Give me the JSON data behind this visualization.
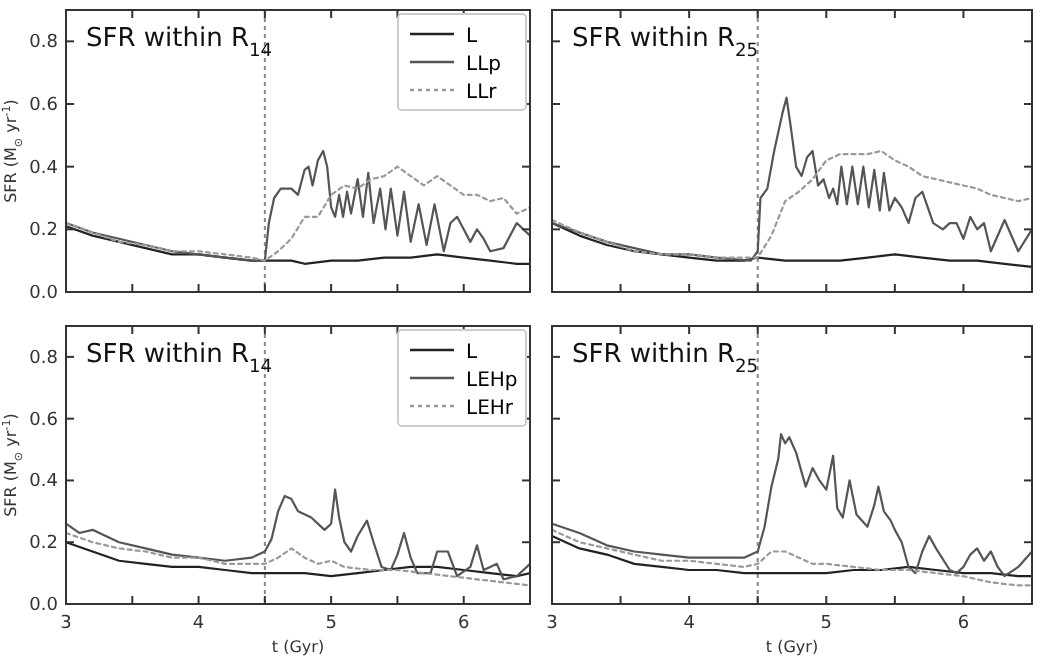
{
  "chart_data": [
    {
      "type": "line",
      "title": "SFR within R$_{14}$",
      "ylabel": "SFR (M$_{⊙}$ yr$^{-1}$)",
      "xlim": [
        3,
        6.5
      ],
      "ylim": [
        0,
        0.9
      ],
      "xticks": [
        {
          "value": 3,
          "label": null
        },
        {
          "value": 3.5,
          "label": null
        },
        {
          "value": 4,
          "label": null
        },
        {
          "value": 4.5,
          "label": null
        },
        {
          "value": 5,
          "label": null
        },
        {
          "value": 5.5,
          "label": null
        },
        {
          "value": 6,
          "label": null
        }
      ],
      "yticks": [
        {
          "value": 0,
          "label": "0.0"
        },
        {
          "value": 0.2,
          "label": "0.2"
        },
        {
          "value": 0.4,
          "label": "0.4"
        },
        {
          "value": 0.6,
          "label": "0.6"
        },
        {
          "value": 0.8,
          "label": "0.8"
        }
      ],
      "tick_labels": "y",
      "legend": "top right",
      "grid": false,
      "ref_lines": [
        {
          "axis": "x",
          "value": 4.5,
          "color": "#888888",
          "line_style": "dotted"
        }
      ],
      "series": [
        {
          "name": "L",
          "color": "#222222",
          "line_style": "solid",
          "x": [
            3.0,
            3.2,
            3.4,
            3.6,
            3.8,
            4.0,
            4.2,
            4.4,
            4.5,
            4.7,
            4.8,
            5.0,
            5.2,
            5.4,
            5.6,
            5.8,
            6.0,
            6.2,
            6.4,
            6.5
          ],
          "values": [
            0.21,
            0.18,
            0.16,
            0.14,
            0.12,
            0.12,
            0.11,
            0.1,
            0.1,
            0.1,
            0.09,
            0.1,
            0.1,
            0.11,
            0.11,
            0.12,
            0.11,
            0.1,
            0.09,
            0.09
          ]
        },
        {
          "name": "LLp",
          "color": "#555555",
          "line_style": "solid",
          "x": [
            3.0,
            3.2,
            3.4,
            3.6,
            3.8,
            4.0,
            4.2,
            4.4,
            4.5,
            4.53,
            4.57,
            4.62,
            4.7,
            4.75,
            4.8,
            4.83,
            4.86,
            4.9,
            4.94,
            4.97,
            5.0,
            5.03,
            5.06,
            5.09,
            5.12,
            5.15,
            5.2,
            5.24,
            5.28,
            5.32,
            5.37,
            5.41,
            5.45,
            5.5,
            5.55,
            5.6,
            5.66,
            5.72,
            5.78,
            5.85,
            5.9,
            5.95,
            6.0,
            6.05,
            6.1,
            6.15,
            6.2,
            6.3,
            6.4,
            6.5
          ],
          "values": [
            0.22,
            0.19,
            0.17,
            0.15,
            0.13,
            0.12,
            0.11,
            0.1,
            0.1,
            0.22,
            0.3,
            0.33,
            0.33,
            0.31,
            0.39,
            0.4,
            0.34,
            0.42,
            0.45,
            0.4,
            0.27,
            0.24,
            0.31,
            0.24,
            0.32,
            0.25,
            0.36,
            0.24,
            0.38,
            0.22,
            0.33,
            0.2,
            0.33,
            0.18,
            0.32,
            0.16,
            0.28,
            0.15,
            0.28,
            0.13,
            0.22,
            0.24,
            0.2,
            0.16,
            0.2,
            0.17,
            0.13,
            0.14,
            0.22,
            0.18
          ]
        },
        {
          "name": "LLr",
          "color": "#999999",
          "line_style": "dotted",
          "x": [
            3.0,
            3.2,
            3.4,
            3.6,
            3.8,
            4.0,
            4.2,
            4.4,
            4.5,
            4.6,
            4.7,
            4.8,
            4.9,
            5.0,
            5.1,
            5.2,
            5.3,
            5.4,
            5.5,
            5.6,
            5.7,
            5.8,
            5.9,
            6.0,
            6.1,
            6.2,
            6.3,
            6.4,
            6.5
          ],
          "values": [
            0.22,
            0.19,
            0.16,
            0.15,
            0.13,
            0.13,
            0.12,
            0.11,
            0.1,
            0.13,
            0.17,
            0.24,
            0.24,
            0.31,
            0.34,
            0.33,
            0.36,
            0.37,
            0.4,
            0.37,
            0.34,
            0.37,
            0.34,
            0.31,
            0.31,
            0.29,
            0.3,
            0.25,
            0.27
          ]
        }
      ]
    },
    {
      "type": "line",
      "title": "SFR within R$_{25}$",
      "xlim": [
        3,
        6.5
      ],
      "ylim": [
        0,
        0.9
      ],
      "xticks": [
        {
          "value": 3,
          "label": null
        },
        {
          "value": 3.5,
          "label": null
        },
        {
          "value": 4,
          "label": null
        },
        {
          "value": 4.5,
          "label": null
        },
        {
          "value": 5,
          "label": null
        },
        {
          "value": 5.5,
          "label": null
        },
        {
          "value": 6,
          "label": null
        }
      ],
      "yticks": [
        {
          "value": 0,
          "label": null
        },
        {
          "value": 0.2,
          "label": null
        },
        {
          "value": 0.4,
          "label": null
        },
        {
          "value": 0.6,
          "label": null
        },
        {
          "value": 0.8,
          "label": null
        }
      ],
      "tick_labels": false,
      "grid": false,
      "ref_lines": [
        {
          "axis": "x",
          "value": 4.5,
          "color": "#888888",
          "line_style": "dotted"
        }
      ],
      "series": [
        {
          "color": "#222222",
          "line_style": "solid",
          "x": [
            3.0,
            3.2,
            3.4,
            3.6,
            3.8,
            4.0,
            4.2,
            4.4,
            4.5,
            4.7,
            4.9,
            5.1,
            5.3,
            5.5,
            5.7,
            5.9,
            6.1,
            6.3,
            6.5
          ],
          "values": [
            0.22,
            0.18,
            0.15,
            0.13,
            0.12,
            0.11,
            0.1,
            0.1,
            0.11,
            0.1,
            0.1,
            0.1,
            0.11,
            0.12,
            0.11,
            0.1,
            0.1,
            0.09,
            0.08
          ]
        },
        {
          "color": "#555555",
          "line_style": "solid",
          "x": [
            3.0,
            3.2,
            3.4,
            3.6,
            3.8,
            4.0,
            4.2,
            4.45,
            4.5,
            4.52,
            4.57,
            4.62,
            4.68,
            4.71,
            4.74,
            4.78,
            4.82,
            4.86,
            4.9,
            4.94,
            4.98,
            5.02,
            5.05,
            5.08,
            5.11,
            5.15,
            5.19,
            5.23,
            5.27,
            5.31,
            5.35,
            5.39,
            5.42,
            5.46,
            5.5,
            5.55,
            5.6,
            5.65,
            5.7,
            5.78,
            5.85,
            5.9,
            5.95,
            6.0,
            6.05,
            6.1,
            6.15,
            6.2,
            6.3,
            6.4,
            6.5
          ],
          "values": [
            0.22,
            0.19,
            0.16,
            0.14,
            0.12,
            0.12,
            0.11,
            0.1,
            0.13,
            0.3,
            0.33,
            0.45,
            0.57,
            0.62,
            0.53,
            0.4,
            0.37,
            0.43,
            0.45,
            0.34,
            0.36,
            0.3,
            0.33,
            0.28,
            0.4,
            0.28,
            0.4,
            0.28,
            0.4,
            0.27,
            0.39,
            0.26,
            0.38,
            0.26,
            0.3,
            0.27,
            0.22,
            0.3,
            0.32,
            0.22,
            0.2,
            0.22,
            0.22,
            0.17,
            0.24,
            0.2,
            0.22,
            0.13,
            0.23,
            0.13,
            0.2
          ]
        },
        {
          "color": "#999999",
          "line_style": "dotted",
          "x": [
            3.0,
            3.2,
            3.4,
            3.6,
            3.8,
            4.0,
            4.2,
            4.4,
            4.5,
            4.6,
            4.7,
            4.8,
            4.9,
            5.0,
            5.1,
            5.2,
            5.3,
            5.4,
            5.5,
            5.6,
            5.7,
            5.8,
            5.9,
            6.0,
            6.1,
            6.2,
            6.3,
            6.4,
            6.5
          ],
          "values": [
            0.23,
            0.19,
            0.16,
            0.13,
            0.12,
            0.12,
            0.11,
            0.11,
            0.11,
            0.18,
            0.29,
            0.32,
            0.36,
            0.42,
            0.44,
            0.44,
            0.44,
            0.45,
            0.42,
            0.4,
            0.37,
            0.36,
            0.35,
            0.34,
            0.33,
            0.31,
            0.3,
            0.29,
            0.3
          ]
        }
      ]
    },
    {
      "type": "line",
      "title": "SFR within R$_{14}$",
      "ylabel": "SFR (M$_{⊙}$ yr$^{-1}$)",
      "xlabel": "t (Gyr)",
      "xlim": [
        3,
        6.5
      ],
      "ylim": [
        0,
        0.9
      ],
      "xticks": [
        {
          "value": 3,
          "label": "3"
        },
        {
          "value": 3.5,
          "label": null
        },
        {
          "value": 4,
          "label": "4"
        },
        {
          "value": 4.5,
          "label": null
        },
        {
          "value": 5,
          "label": "5"
        },
        {
          "value": 5.5,
          "label": null
        },
        {
          "value": 6,
          "label": "6"
        }
      ],
      "yticks": [
        {
          "value": 0,
          "label": "0.0"
        },
        {
          "value": 0.2,
          "label": "0.2"
        },
        {
          "value": 0.4,
          "label": "0.4"
        },
        {
          "value": 0.6,
          "label": "0.6"
        },
        {
          "value": 0.8,
          "label": "0.8"
        }
      ],
      "legend": "top right",
      "grid": false,
      "ref_lines": [
        {
          "axis": "x",
          "value": 4.5,
          "color": "#888888",
          "line_style": "dotted"
        }
      ],
      "series": [
        {
          "name": "L",
          "color": "#222222",
          "line_style": "solid",
          "x": [
            3.0,
            3.2,
            3.4,
            3.6,
            3.8,
            4.0,
            4.2,
            4.4,
            4.6,
            4.8,
            5.0,
            5.2,
            5.4,
            5.6,
            5.8,
            6.0,
            6.2,
            6.4,
            6.5
          ],
          "values": [
            0.2,
            0.17,
            0.14,
            0.13,
            0.12,
            0.12,
            0.11,
            0.1,
            0.1,
            0.1,
            0.09,
            0.1,
            0.11,
            0.12,
            0.12,
            0.11,
            0.1,
            0.09,
            0.1
          ]
        },
        {
          "name": "LEHp",
          "color": "#555555",
          "line_style": "solid",
          "x": [
            3.0,
            3.1,
            3.2,
            3.3,
            3.4,
            3.6,
            3.8,
            4.0,
            4.2,
            4.4,
            4.5,
            4.55,
            4.6,
            4.65,
            4.7,
            4.75,
            4.85,
            4.95,
            5.0,
            5.03,
            5.06,
            5.1,
            5.15,
            5.2,
            5.27,
            5.32,
            5.38,
            5.45,
            5.5,
            5.55,
            5.6,
            5.65,
            5.75,
            5.8,
            5.88,
            5.95,
            6.05,
            6.1,
            6.15,
            6.2,
            6.25,
            6.3,
            6.4,
            6.5
          ],
          "values": [
            0.26,
            0.23,
            0.24,
            0.22,
            0.2,
            0.18,
            0.16,
            0.15,
            0.14,
            0.15,
            0.17,
            0.21,
            0.3,
            0.35,
            0.34,
            0.3,
            0.28,
            0.24,
            0.26,
            0.37,
            0.28,
            0.2,
            0.17,
            0.22,
            0.27,
            0.2,
            0.12,
            0.11,
            0.16,
            0.23,
            0.15,
            0.1,
            0.1,
            0.17,
            0.17,
            0.09,
            0.12,
            0.19,
            0.11,
            0.12,
            0.13,
            0.08,
            0.09,
            0.13
          ]
        },
        {
          "name": "LEHr",
          "color": "#999999",
          "line_style": "dotted",
          "x": [
            3.0,
            3.2,
            3.4,
            3.6,
            3.8,
            4.0,
            4.2,
            4.4,
            4.5,
            4.6,
            4.7,
            4.8,
            4.9,
            5.0,
            5.1,
            5.3,
            5.5,
            5.7,
            5.9,
            6.1,
            6.3,
            6.5
          ],
          "values": [
            0.23,
            0.2,
            0.18,
            0.17,
            0.15,
            0.15,
            0.13,
            0.13,
            0.13,
            0.15,
            0.18,
            0.15,
            0.13,
            0.14,
            0.12,
            0.11,
            0.11,
            0.1,
            0.09,
            0.08,
            0.07,
            0.06
          ]
        }
      ]
    },
    {
      "type": "line",
      "title": "SFR within R$_{25}$",
      "xlabel": "t (Gyr)",
      "xlim": [
        3,
        6.5
      ],
      "ylim": [
        0,
        0.9
      ],
      "xticks": [
        {
          "value": 3,
          "label": "3"
        },
        {
          "value": 3.5,
          "label": null
        },
        {
          "value": 4,
          "label": "4"
        },
        {
          "value": 4.5,
          "label": null
        },
        {
          "value": 5,
          "label": "5"
        },
        {
          "value": 5.5,
          "label": null
        },
        {
          "value": 6,
          "label": "6"
        }
      ],
      "yticks": [
        {
          "value": 0,
          "label": null
        },
        {
          "value": 0.2,
          "label": null
        },
        {
          "value": 0.4,
          "label": null
        },
        {
          "value": 0.6,
          "label": null
        },
        {
          "value": 0.8,
          "label": null
        }
      ],
      "tick_labels": "x",
      "grid": false,
      "ref_lines": [
        {
          "axis": "x",
          "value": 4.5,
          "color": "#888888",
          "line_style": "dotted"
        }
      ],
      "series": [
        {
          "color": "#222222",
          "line_style": "solid",
          "x": [
            3.0,
            3.2,
            3.4,
            3.6,
            3.8,
            4.0,
            4.2,
            4.4,
            4.6,
            4.8,
            5.0,
            5.2,
            5.4,
            5.6,
            5.8,
            6.0,
            6.2,
            6.4,
            6.5
          ],
          "values": [
            0.22,
            0.18,
            0.16,
            0.13,
            0.12,
            0.11,
            0.11,
            0.1,
            0.1,
            0.1,
            0.1,
            0.11,
            0.11,
            0.12,
            0.11,
            0.1,
            0.1,
            0.09,
            0.09
          ]
        },
        {
          "color": "#555555",
          "line_style": "solid",
          "x": [
            3.0,
            3.2,
            3.4,
            3.6,
            3.8,
            4.0,
            4.2,
            4.4,
            4.5,
            4.55,
            4.6,
            4.65,
            4.67,
            4.7,
            4.73,
            4.78,
            4.85,
            4.9,
            4.95,
            5.0,
            5.05,
            5.08,
            5.12,
            5.17,
            5.22,
            5.3,
            5.35,
            5.38,
            5.42,
            5.47,
            5.5,
            5.55,
            5.6,
            5.65,
            5.7,
            5.75,
            5.8,
            5.9,
            5.95,
            6.0,
            6.05,
            6.1,
            6.15,
            6.2,
            6.25,
            6.3,
            6.4,
            6.5
          ],
          "values": [
            0.26,
            0.23,
            0.19,
            0.17,
            0.16,
            0.15,
            0.15,
            0.15,
            0.17,
            0.25,
            0.38,
            0.47,
            0.55,
            0.52,
            0.54,
            0.49,
            0.38,
            0.44,
            0.4,
            0.37,
            0.48,
            0.31,
            0.28,
            0.4,
            0.29,
            0.25,
            0.32,
            0.38,
            0.3,
            0.27,
            0.24,
            0.2,
            0.12,
            0.1,
            0.17,
            0.22,
            0.18,
            0.11,
            0.1,
            0.12,
            0.16,
            0.18,
            0.14,
            0.17,
            0.12,
            0.09,
            0.12,
            0.17
          ]
        },
        {
          "color": "#999999",
          "line_style": "dotted",
          "x": [
            3.0,
            3.2,
            3.4,
            3.6,
            3.8,
            4.0,
            4.2,
            4.4,
            4.5,
            4.6,
            4.7,
            4.8,
            4.9,
            5.0,
            5.2,
            5.4,
            5.6,
            5.8,
            6.0,
            6.2,
            6.4,
            6.5
          ],
          "values": [
            0.24,
            0.2,
            0.18,
            0.16,
            0.14,
            0.14,
            0.13,
            0.12,
            0.13,
            0.17,
            0.17,
            0.15,
            0.13,
            0.13,
            0.12,
            0.11,
            0.11,
            0.1,
            0.09,
            0.07,
            0.06,
            0.06
          ]
        }
      ]
    }
  ]
}
